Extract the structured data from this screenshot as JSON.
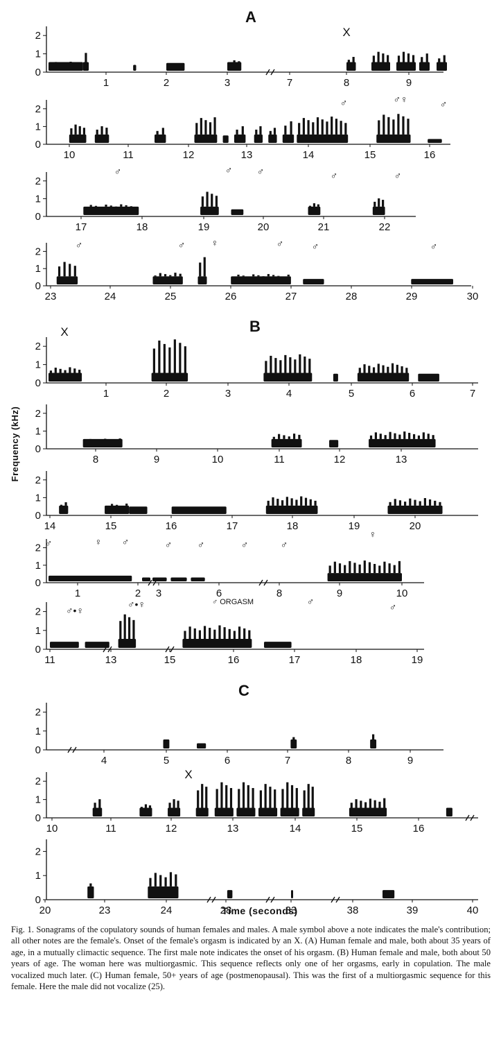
{
  "y_axis_label": "Frequency (kHz)",
  "x_axis_label": "Time (seconds)",
  "caption": "Fig. 1. Sonagrams of the copulatory sounds of human females and males. A male symbol above a note indicates the male's contribution; all other notes are the female's. Onset of the female's orgasm is indicated by an X. (A) Human female and male, both about 35 years of age, in a mutually climactic sequence. The first male note indicates the onset of his orgasm. (B) Human female and male, both about 50 years of age. The woman here was multiorgasmic. This sequence reflects only one of her orgasms, early in copulation. The male vocalized much later. (C) Human female, 50+ years of age (postmenopausal). This was the first of a multiorgasmic sequence for this female. Here the male did not vocalize (25).",
  "colors": {
    "ink": "#111111",
    "paper": "#ffffff"
  },
  "chart_data": [
    {
      "type": "scatter",
      "title": "A",
      "ylim": [
        0,
        2.5
      ],
      "yticks": [
        0,
        1,
        2
      ],
      "rows": [
        {
          "tick_labels": [
            "1",
            "2",
            "3",
            "7",
            "8",
            "9"
          ],
          "symbols": [
            "X"
          ],
          "notes": [
            {
              "t0": 0.0,
              "t1": 0.6,
              "fmax": 0.6
            },
            {
              "t0": 0.6,
              "t1": 0.7,
              "fmax": 1.4
            },
            {
              "t0": 1.45,
              "t1": 1.5,
              "fmax": 0.4
            },
            {
              "t0": 2.0,
              "t1": 2.3,
              "fmax": 0.5
            },
            {
              "t0": 3.0,
              "t1": 3.9,
              "fmax": 0.7
            },
            {
              "t0": 8.0,
              "t1": 8.15,
              "fmax": 0.9
            },
            {
              "t0": 8.4,
              "t1": 8.7,
              "fmax": 1.2
            },
            {
              "t0": 8.8,
              "t1": 9.2,
              "fmax": 1.2
            },
            {
              "t0": 9.3,
              "t1": 9.6,
              "fmax": 1.1
            },
            {
              "t0": 9.8,
              "t1": 10.1,
              "fmax": 1.0
            }
          ]
        },
        {
          "tick_labels": [
            "10",
            "11",
            "12",
            "13",
            "14",
            "15",
            "16"
          ],
          "symbols": [
            "♂",
            "♂♀",
            "♂"
          ],
          "notes": [
            {
              "t0": 10.0,
              "t1": 10.3,
              "fmax": 1.2
            },
            {
              "t0": 10.45,
              "t1": 10.7,
              "fmax": 1.1
            },
            {
              "t0": 11.5,
              "t1": 11.7,
              "fmax": 1.0
            },
            {
              "t0": 12.2,
              "t1": 12.6,
              "fmax": 1.6
            },
            {
              "t0": 12.7,
              "t1": 12.8,
              "fmax": 0.5
            },
            {
              "t0": 12.9,
              "t1": 13.1,
              "fmax": 1.1
            },
            {
              "t0": 13.25,
              "t1": 13.4,
              "fmax": 1.1
            },
            {
              "t0": 13.5,
              "t1": 13.65,
              "fmax": 1.0
            },
            {
              "t0": 13.75,
              "t1": 13.95,
              "fmax": 1.4
            },
            {
              "t0": 14.0,
              "t1": 14.9,
              "fmax": 1.6
            },
            {
              "t0": 15.4,
              "t1": 16.0,
              "fmax": 1.8
            },
            {
              "t0": 16.3,
              "t1": 16.55,
              "fmax": 0.3
            }
          ]
        },
        {
          "tick_labels": [
            "17",
            "18",
            "19",
            "20",
            "21",
            "22"
          ],
          "symbols": [
            "♂",
            "♂",
            "♂",
            "♂",
            "♂"
          ],
          "notes": [
            {
              "t0": 17.1,
              "t1": 18.0,
              "fmax": 0.7
            },
            {
              "t0": 19.0,
              "t1": 19.3,
              "fmax": 1.5
            },
            {
              "t0": 19.5,
              "t1": 19.7,
              "fmax": 0.4
            },
            {
              "t0": 20.75,
              "t1": 20.95,
              "fmax": 0.8
            },
            {
              "t0": 21.8,
              "t1": 22.0,
              "fmax": 1.1
            }
          ]
        },
        {
          "tick_labels": [
            "23",
            "24",
            "25",
            "26",
            "27",
            "28",
            "29",
            "30"
          ],
          "symbols": [
            "♂",
            "♂",
            "♀",
            "♂",
            "♂",
            "♂"
          ],
          "notes": [
            {
              "t0": 23.1,
              "t1": 23.45,
              "fmax": 1.5
            },
            {
              "t0": 24.7,
              "t1": 25.2,
              "fmax": 0.8
            },
            {
              "t0": 25.45,
              "t1": 25.6,
              "fmax": 1.8
            },
            {
              "t0": 26.0,
              "t1": 27.0,
              "fmax": 0.7
            },
            {
              "t0": 27.2,
              "t1": 27.55,
              "fmax": 0.4
            },
            {
              "t0": 29.0,
              "t1": 29.7,
              "fmax": 0.4
            }
          ]
        }
      ]
    },
    {
      "type": "scatter",
      "title": "B",
      "ylim": [
        0,
        2.5
      ],
      "yticks": [
        0,
        1,
        2
      ],
      "rows": [
        {
          "tick_labels": [
            "1",
            "2",
            "3",
            "4",
            "5",
            "6",
            "7"
          ],
          "symbols": [
            "X"
          ],
          "notes": [
            {
              "t0": 0.0,
              "t1": 0.55,
              "fmax": 0.9
            },
            {
              "t0": 1.7,
              "t1": 2.3,
              "fmax": 2.5
            },
            {
              "t0": 3.55,
              "t1": 4.35,
              "fmax": 1.6
            },
            {
              "t0": 4.7,
              "t1": 4.78,
              "fmax": 0.5
            },
            {
              "t0": 5.1,
              "t1": 5.95,
              "fmax": 1.1
            },
            {
              "t0": 6.1,
              "t1": 6.45,
              "fmax": 0.5
            }
          ]
        },
        {
          "tick_labels": [
            "8",
            "9",
            "10",
            "11",
            "12",
            "13"
          ],
          "symbols": [],
          "notes": [
            {
              "t0": 7.8,
              "t1": 8.45,
              "fmax": 0.6
            },
            {
              "t0": 10.9,
              "t1": 11.4,
              "fmax": 0.9
            },
            {
              "t0": 11.85,
              "t1": 12.0,
              "fmax": 0.5
            },
            {
              "t0": 12.5,
              "t1": 13.6,
              "fmax": 1.0
            }
          ]
        },
        {
          "tick_labels": [
            "14",
            "15",
            "16",
            "17",
            "18",
            "19",
            "20"
          ],
          "symbols": [],
          "notes": [
            {
              "t0": 14.15,
              "t1": 14.3,
              "fmax": 0.8
            },
            {
              "t0": 14.9,
              "t1": 15.3,
              "fmax": 0.7
            },
            {
              "t0": 15.3,
              "t1": 15.6,
              "fmax": 0.5
            },
            {
              "t0": 16.0,
              "t1": 16.9,
              "fmax": 0.5
            },
            {
              "t0": 17.55,
              "t1": 18.4,
              "fmax": 1.1
            },
            {
              "t0": 19.55,
              "t1": 20.45,
              "fmax": 1.0
            }
          ]
        },
        {
          "tick_labels": [
            "1",
            "2",
            "3",
            "6",
            "8",
            "9",
            "10"
          ],
          "symbols": [
            "♂",
            "♀",
            "♂",
            "♂",
            "♂",
            "♂",
            "♂",
            "♀"
          ],
          "notes": [
            {
              "t0": 0.0,
              "t1": 1.9,
              "fmax": 0.4
            },
            {
              "t0": 2.2,
              "t1": 2.6,
              "fmax": 0.3
            },
            {
              "t0": 2.7,
              "t1": 3.4,
              "fmax": 0.3
            },
            {
              "t0": 3.6,
              "t1": 4.4,
              "fmax": 0.3
            },
            {
              "t0": 4.6,
              "t1": 5.3,
              "fmax": 0.3
            },
            {
              "t0": 8.8,
              "t1": 10.0,
              "fmax": 1.3
            }
          ]
        },
        {
          "tick_labels": [
            "11",
            "13",
            "15",
            "16",
            "17",
            "18",
            "19"
          ],
          "symbols": [
            "♂•♀",
            "♂•♀",
            "♂ ORGASM",
            "♂",
            "♂"
          ],
          "notes": [
            {
              "t0": 11.0,
              "t1": 11.95,
              "fmax": 0.4
            },
            {
              "t0": 12.15,
              "t1": 12.95,
              "fmax": 0.4
            },
            {
              "t0": 13.25,
              "t1": 13.85,
              "fmax": 2.0
            },
            {
              "t0": 15.2,
              "t1": 16.3,
              "fmax": 1.3
            },
            {
              "t0": 16.5,
              "t1": 16.95,
              "fmax": 0.4
            }
          ]
        }
      ]
    },
    {
      "type": "scatter",
      "title": "C",
      "ylim": [
        0,
        2.5
      ],
      "yticks": [
        0,
        1,
        2
      ],
      "rows": [
        {
          "tick_labels": [
            "4",
            "5",
            "6",
            "7",
            "8",
            "9"
          ],
          "symbols": [],
          "notes": [
            {
              "t0": 4.95,
              "t1": 5.05,
              "fmax": 0.7
            },
            {
              "t0": 5.5,
              "t1": 5.65,
              "fmax": 0.35
            },
            {
              "t0": 7.05,
              "t1": 7.15,
              "fmax": 0.9
            },
            {
              "t0": 8.35,
              "t1": 8.45,
              "fmax": 1.1
            }
          ]
        },
        {
          "tick_labels": [
            "10",
            "11",
            "12",
            "13",
            "14",
            "15",
            "16"
          ],
          "symbols": [
            "X"
          ],
          "notes": [
            {
              "t0": 10.65,
              "t1": 10.8,
              "fmax": 1.1
            },
            {
              "t0": 11.4,
              "t1": 11.6,
              "fmax": 0.8
            },
            {
              "t0": 11.85,
              "t1": 12.05,
              "fmax": 1.1
            },
            {
              "t0": 12.3,
              "t1": 12.5,
              "fmax": 2.0
            },
            {
              "t0": 12.6,
              "t1": 12.9,
              "fmax": 2.1
            },
            {
              "t0": 12.95,
              "t1": 13.25,
              "fmax": 2.1
            },
            {
              "t0": 13.3,
              "t1": 13.6,
              "fmax": 2.0
            },
            {
              "t0": 13.65,
              "t1": 13.95,
              "fmax": 2.1
            },
            {
              "t0": 14.0,
              "t1": 14.2,
              "fmax": 2.0
            },
            {
              "t0": 14.75,
              "t1": 15.35,
              "fmax": 1.1
            },
            {
              "t0": 16.3,
              "t1": 16.4,
              "fmax": 0.6
            }
          ]
        },
        {
          "tick_labels": [
            "20",
            "23",
            "24",
            "28",
            "33",
            "38",
            "39",
            "40"
          ],
          "symbols": [],
          "notes": [
            {
              "t0": 22.6,
              "t1": 22.75,
              "fmax": 0.9
            },
            {
              "t0": 23.7,
              "t1": 24.35,
              "fmax": 1.2
            },
            {
              "t0": 28.1,
              "t1": 28.5,
              "fmax": 0.4
            },
            {
              "t0": 33.0,
              "t1": 33.15,
              "fmax": 0.4
            },
            {
              "t0": 38.5,
              "t1": 38.7,
              "fmax": 0.4
            }
          ]
        }
      ]
    }
  ]
}
